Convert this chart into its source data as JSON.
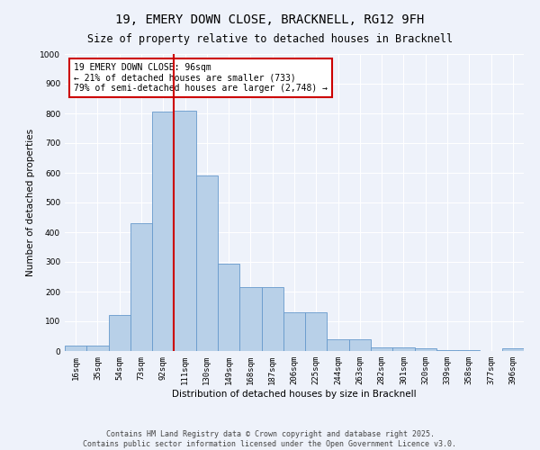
{
  "title": "19, EMERY DOWN CLOSE, BRACKNELL, RG12 9FH",
  "subtitle": "Size of property relative to detached houses in Bracknell",
  "xlabel": "Distribution of detached houses by size in Bracknell",
  "ylabel": "Number of detached properties",
  "categories": [
    "16sqm",
    "35sqm",
    "54sqm",
    "73sqm",
    "92sqm",
    "111sqm",
    "130sqm",
    "149sqm",
    "168sqm",
    "187sqm",
    "206sqm",
    "225sqm",
    "244sqm",
    "263sqm",
    "282sqm",
    "301sqm",
    "320sqm",
    "339sqm",
    "358sqm",
    "377sqm",
    "396sqm"
  ],
  "values": [
    18,
    18,
    122,
    430,
    805,
    810,
    590,
    295,
    215,
    215,
    130,
    130,
    40,
    40,
    12,
    12,
    10,
    2,
    2,
    0,
    8
  ],
  "bar_color": "#b8d0e8",
  "bar_edge_color": "#6699cc",
  "vline_color": "#cc0000",
  "annotation_text": "19 EMERY DOWN CLOSE: 96sqm\n← 21% of detached houses are smaller (733)\n79% of semi-detached houses are larger (2,748) →",
  "annotation_box_color": "#ffffff",
  "annotation_box_edge": "#cc0000",
  "ylim": [
    0,
    1000
  ],
  "yticks": [
    0,
    100,
    200,
    300,
    400,
    500,
    600,
    700,
    800,
    900,
    1000
  ],
  "background_color": "#eef2fa",
  "footer_line1": "Contains HM Land Registry data © Crown copyright and database right 2025.",
  "footer_line2": "Contains public sector information licensed under the Open Government Licence v3.0.",
  "title_fontsize": 10,
  "subtitle_fontsize": 8.5,
  "axis_label_fontsize": 7.5,
  "tick_fontsize": 6.5,
  "annotation_fontsize": 7,
  "footer_fontsize": 6
}
